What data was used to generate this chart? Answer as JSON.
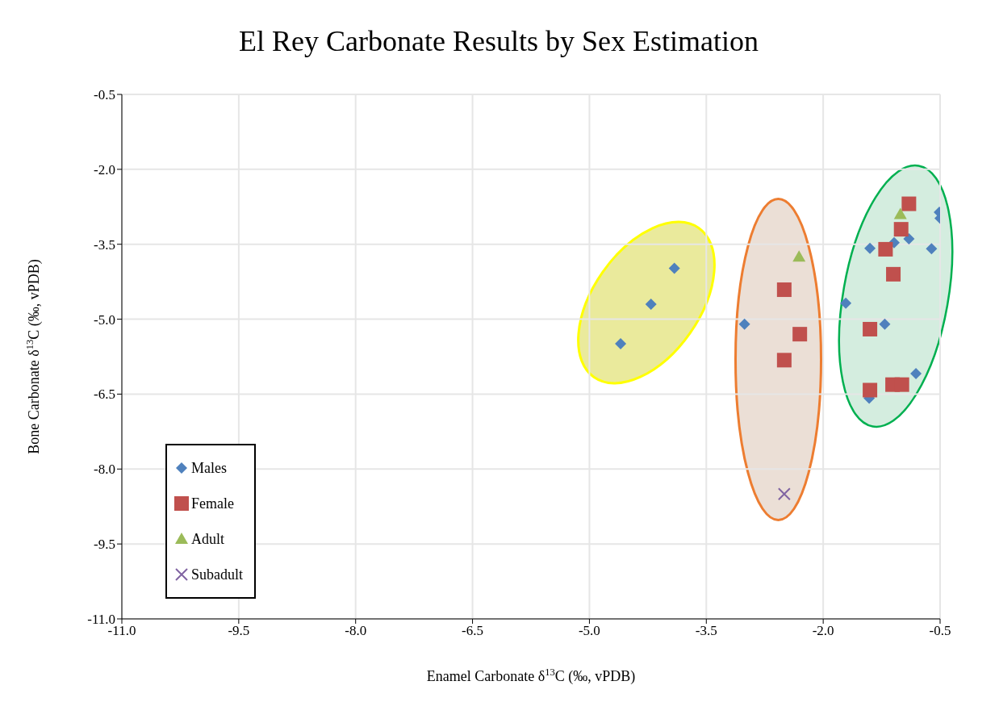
{
  "chart_data": {
    "type": "scatter",
    "title": "El Rey Carbonate Results by Sex Estimation",
    "xlabel": "Enamel Carbonate δ$^{13}$C (‰, vPDB)",
    "ylabel": "Bone Carbonate δ$^{13}$C (‰, vPDB)",
    "xlim": [
      -11,
      -0.5
    ],
    "ylim": [
      -11,
      -0.5
    ],
    "xticks": [
      {
        "value": -11,
        "label": "-11.0"
      },
      -9.5,
      {
        "value": -8,
        "label": "-8.0"
      },
      -6.5,
      {
        "value": -5,
        "label": "-5.0"
      },
      -3.5,
      {
        "value": -2,
        "label": "-2.0"
      },
      -0.5
    ],
    "yticks": [
      {
        "value": -11,
        "label": "-11.0"
      },
      -9.5,
      {
        "value": -8,
        "label": "-8.0"
      },
      -6.5,
      {
        "value": -5,
        "label": "-5.0"
      },
      -3.5,
      {
        "value": -2,
        "label": "-2.0"
      },
      -0.5
    ],
    "grid": true,
    "legend": "bottom left",
    "series": [
      {
        "name": "Males",
        "color": "#4f81bd",
        "marker": "diamond",
        "x": [
          -3.91,
          -4.21,
          -4.6,
          -3.01,
          -0.51,
          -0.5,
          -0.9,
          -1.09,
          -1.4,
          -0.61,
          -1.71,
          -1.21,
          -0.81,
          -1.41
        ],
        "values": [
          -3.98,
          -4.7,
          -5.49,
          -5.1,
          -2.86,
          -2.98,
          -3.39,
          -3.47,
          -3.58,
          -3.59,
          -4.68,
          -5.1,
          -6.09,
          -6.58
        ]
      },
      {
        "name": "Female",
        "color": "#c0504d",
        "marker": "square",
        "x": [
          -2.5,
          -2.3,
          -2.5,
          -0.9,
          -1.0,
          -1.2,
          -1.1,
          -1.4,
          -1.11,
          -0.99,
          -1.4
        ],
        "values": [
          -4.41,
          -5.3,
          -5.82,
          -2.69,
          -3.2,
          -3.6,
          -4.1,
          -5.2,
          -6.31,
          -6.31,
          -6.42
        ]
      },
      {
        "name": "Adult",
        "color": "#9bbb59",
        "marker": "triangle",
        "x": [
          -2.31,
          -1.01
        ],
        "values": [
          -3.75,
          -2.9
        ]
      },
      {
        "name": "Subadult",
        "color": "#8064a2",
        "marker": "cross",
        "x": [
          -2.5
        ],
        "values": [
          -8.5
        ]
      }
    ]
  }
}
